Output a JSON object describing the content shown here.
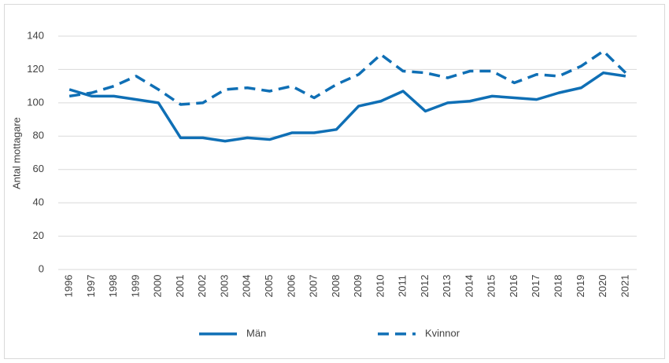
{
  "chart_data": {
    "type": "line",
    "y_label": "Antal mottagare",
    "categories": [
      "1996",
      "1997",
      "1998",
      "1999",
      "2000",
      "2001",
      "2002",
      "2003",
      "2004",
      "2005",
      "2006",
      "2007",
      "2008",
      "2009",
      "2010",
      "2011",
      "2012",
      "2013",
      "2014",
      "2015",
      "2016",
      "2017",
      "2018",
      "2019",
      "2020",
      "2021"
    ],
    "series": [
      {
        "name": "Män",
        "color": "#0f6fb5",
        "dash": "solid",
        "values": [
          108,
          104,
          104,
          102,
          100,
          79,
          79,
          77,
          79,
          78,
          82,
          82,
          84,
          98,
          101,
          107,
          95,
          100,
          101,
          104,
          103,
          102,
          106,
          109,
          118,
          116
        ]
      },
      {
        "name": "Kvinnor",
        "color": "#0f6fb5",
        "dash": "dashed",
        "values": [
          104,
          106,
          110,
          116,
          108,
          99,
          100,
          108,
          109,
          107,
          110,
          103,
          111,
          117,
          129,
          119,
          118,
          115,
          119,
          119,
          112,
          117,
          116,
          122,
          131,
          118
        ]
      }
    ],
    "ylim": [
      0,
      140
    ],
    "yticks": [
      0,
      20,
      40,
      60,
      80,
      100,
      120,
      140
    ],
    "grid": true,
    "legend": "bottom"
  }
}
